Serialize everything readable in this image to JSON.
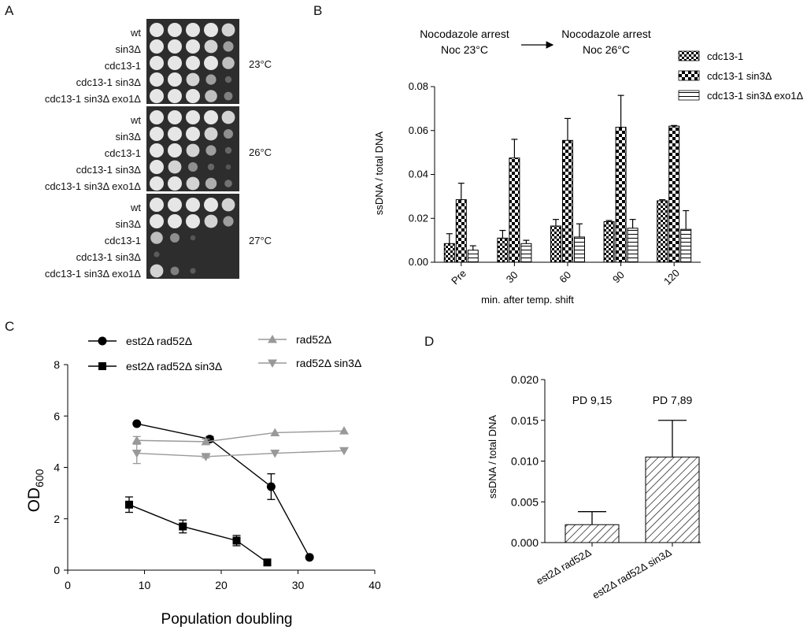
{
  "panels": {
    "a": "A",
    "b": "B",
    "c": "C",
    "d": "D"
  },
  "panel_a": {
    "groups": [
      {
        "temp": "23°C",
        "strains": [
          "wt",
          "sin3Δ",
          "cdc13-1",
          "cdc13-1 sin3Δ",
          "cdc13-1 sin3Δ exo1Δ"
        ],
        "growth": [
          [
            1,
            1,
            1,
            1,
            0.9
          ],
          [
            1,
            1,
            1,
            0.9,
            0.6
          ],
          [
            1,
            1,
            1,
            1,
            0.8
          ],
          [
            1,
            1,
            0.9,
            0.6,
            0.2
          ],
          [
            1,
            1,
            1,
            0.8,
            0.4
          ]
        ]
      },
      {
        "temp": "26°C",
        "strains": [
          "wt",
          "sin3Δ",
          "cdc13-1",
          "cdc13-1 sin3Δ",
          "cdc13-1 sin3Δ exo1Δ"
        ],
        "growth": [
          [
            1,
            1,
            1,
            1,
            0.9
          ],
          [
            1,
            1,
            1,
            0.9,
            0.5
          ],
          [
            1,
            1,
            0.9,
            0.6,
            0.2
          ],
          [
            1,
            0.9,
            0.5,
            0.2,
            0.05
          ],
          [
            1,
            1,
            0.9,
            0.7,
            0.3
          ]
        ]
      },
      {
        "temp": "27°C",
        "strains": [
          "wt",
          "sin3Δ",
          "cdc13-1",
          "cdc13-1 sin3Δ",
          "cdc13-1 sin3Δ exo1Δ"
        ],
        "growth": [
          [
            1,
            1,
            1,
            1,
            0.9
          ],
          [
            1,
            1,
            1,
            0.9,
            0.6
          ],
          [
            0.8,
            0.5,
            0.05,
            0,
            0
          ],
          [
            0.1,
            0,
            0,
            0,
            0
          ],
          [
            0.9,
            0.4,
            0.1,
            0,
            0
          ]
        ]
      }
    ]
  },
  "chart_data": [
    {
      "id": "B",
      "type": "bar",
      "annotation": {
        "left_line1": "Nocodazole arrest",
        "left_line2": "Noc 23°C",
        "right_line1": "Nocodazole arrest",
        "right_line2": "Noc 26°C"
      },
      "categories": [
        "Pre",
        "30",
        "60",
        "90",
        "120"
      ],
      "series": [
        {
          "name": "cdc13-1",
          "pattern": "checker-small",
          "values": [
            0.0085,
            0.011,
            0.0165,
            0.0185,
            0.028
          ],
          "errors": [
            0.0045,
            0.0035,
            0.003,
            0.0005,
            0.0005
          ]
        },
        {
          "name": "cdc13-1 sin3Δ",
          "pattern": "checker-large",
          "values": [
            0.0285,
            0.0475,
            0.0555,
            0.0615,
            0.062
          ],
          "errors": [
            0.0075,
            0.0085,
            0.01,
            0.0145,
            0.0003
          ]
        },
        {
          "name": "cdc13-1 sin3Δ exo1Δ",
          "pattern": "horizontal-lines",
          "values": [
            0.0055,
            0.0085,
            0.0115,
            0.0155,
            0.015
          ],
          "errors": [
            0.002,
            0.0015,
            0.006,
            0.004,
            0.0085
          ]
        }
      ],
      "ylim": [
        0,
        0.08
      ],
      "yticks": [
        "0.00",
        "0.02",
        "0.04",
        "0.06",
        "0.08"
      ],
      "xlabel": "min. after temp. shift",
      "ylabel": "ssDNA / total DNA",
      "legend_placement": "top-right"
    },
    {
      "id": "C",
      "type": "line",
      "xlim": [
        0,
        40
      ],
      "ylim": [
        0,
        8
      ],
      "xticks": [
        "0",
        "10",
        "20",
        "30",
        "40"
      ],
      "yticks": [
        "0",
        "2",
        "4",
        "6",
        "8"
      ],
      "xlabel": "Population doubling",
      "ylabel_main": "OD",
      "ylabel_sub": "600",
      "series": [
        {
          "name": "est2Δ rad52Δ",
          "marker": "circle",
          "color": "#000000",
          "x": [
            9,
            18.5,
            26.5,
            31.5
          ],
          "y": [
            5.7,
            5.1,
            3.25,
            0.5
          ],
          "err": [
            0,
            0.1,
            0.5,
            0
          ]
        },
        {
          "name": "est2Δ rad52Δ sin3Δ",
          "marker": "square",
          "color": "#000000",
          "x": [
            8,
            15,
            22,
            26
          ],
          "y": [
            2.55,
            1.7,
            1.15,
            0.3
          ],
          "err": [
            0.3,
            0.25,
            0.2,
            0
          ]
        },
        {
          "name": "rad52Δ",
          "marker": "triangle-up",
          "color": "#999999",
          "x": [
            9,
            18,
            27,
            36
          ],
          "y": [
            5.05,
            5.0,
            5.35,
            5.42
          ],
          "err": [
            0.15,
            0.1,
            0,
            0
          ]
        },
        {
          "name": "rad52Δ sin3Δ",
          "marker": "triangle-down",
          "color": "#999999",
          "x": [
            9,
            18,
            27,
            36
          ],
          "y": [
            4.55,
            4.42,
            4.55,
            4.65
          ],
          "err": [
            0.4,
            0.05,
            0,
            0
          ]
        }
      ],
      "legend_placement": "top"
    },
    {
      "id": "D",
      "type": "bar",
      "categories": [
        "est2Δ rad52Δ",
        "est2Δ rad52Δ sin3Δ"
      ],
      "values": [
        0.0022,
        0.0105
      ],
      "errors": [
        0.0016,
        0.0045
      ],
      "annotations": [
        "PD 9,15",
        "PD 7,89"
      ],
      "ylim": [
        0,
        0.02
      ],
      "yticks": [
        "0.000",
        "0.005",
        "0.010",
        "0.015",
        "0.020"
      ],
      "ylabel": "ssDNA / total DNA",
      "pattern": "diagonal-lines"
    }
  ]
}
